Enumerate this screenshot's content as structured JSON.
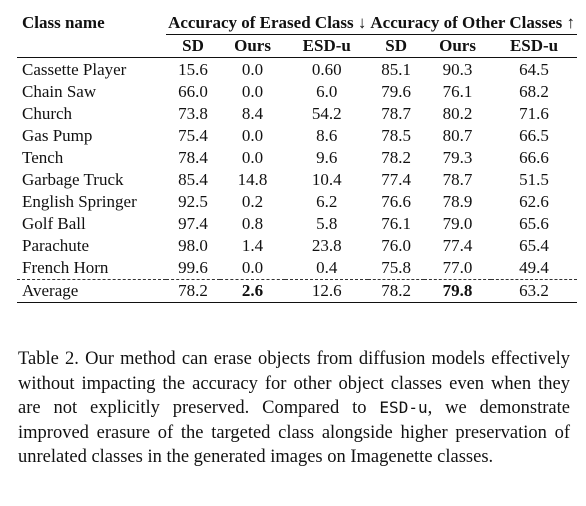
{
  "table": {
    "header": {
      "class_name": "Class name",
      "group_erased": "Accuracy of Erased Class ↓",
      "group_other": "Accuracy of Other Classes ↑",
      "sub_cols": [
        "SD",
        "Ours",
        "ESD-u",
        "SD",
        "Ours",
        "ESD-u"
      ]
    },
    "rows": [
      {
        "name": "Cassette Player",
        "vals": [
          "15.6",
          "0.0",
          "0.60",
          "85.1",
          "90.3",
          "64.5"
        ]
      },
      {
        "name": "Chain Saw",
        "vals": [
          "66.0",
          "0.0",
          "6.0",
          "79.6",
          "76.1",
          "68.2"
        ]
      },
      {
        "name": "Church",
        "vals": [
          "73.8",
          "8.4",
          "54.2",
          "78.7",
          "80.2",
          "71.6"
        ]
      },
      {
        "name": "Gas Pump",
        "vals": [
          "75.4",
          "0.0",
          "8.6",
          "78.5",
          "80.7",
          "66.5"
        ]
      },
      {
        "name": "Tench",
        "vals": [
          "78.4",
          "0.0",
          "9.6",
          "78.2",
          "79.3",
          "66.6"
        ]
      },
      {
        "name": "Garbage Truck",
        "vals": [
          "85.4",
          "14.8",
          "10.4",
          "77.4",
          "78.7",
          "51.5"
        ]
      },
      {
        "name": "English Springer",
        "vals": [
          "92.5",
          "0.2",
          "6.2",
          "76.6",
          "78.9",
          "62.6"
        ]
      },
      {
        "name": "Golf Ball",
        "vals": [
          "97.4",
          "0.8",
          "5.8",
          "76.1",
          "79.0",
          "65.6"
        ]
      },
      {
        "name": "Parachute",
        "vals": [
          "98.0",
          "1.4",
          "23.8",
          "76.0",
          "77.4",
          "65.4"
        ]
      },
      {
        "name": "French Horn",
        "vals": [
          "99.6",
          "0.0",
          "0.4",
          "75.8",
          "77.0",
          "49.4"
        ]
      }
    ],
    "average": {
      "name": "Average",
      "vals": [
        "78.2",
        "2.6",
        "12.6",
        "78.2",
        "79.8",
        "63.2"
      ],
      "bold_indices": [
        1,
        4
      ]
    }
  },
  "caption": {
    "part1": "Table 2.  Our method can erase objects from diffusion models effectively without impacting the accuracy for other object classes even when they are not explicitly preserved. Compared to ",
    "code": "ESD-u",
    "part2": ", we demonstrate improved erasure of the targeted class alongside higher preservation of unrelated classes in the generated images on Imagenette classes."
  }
}
